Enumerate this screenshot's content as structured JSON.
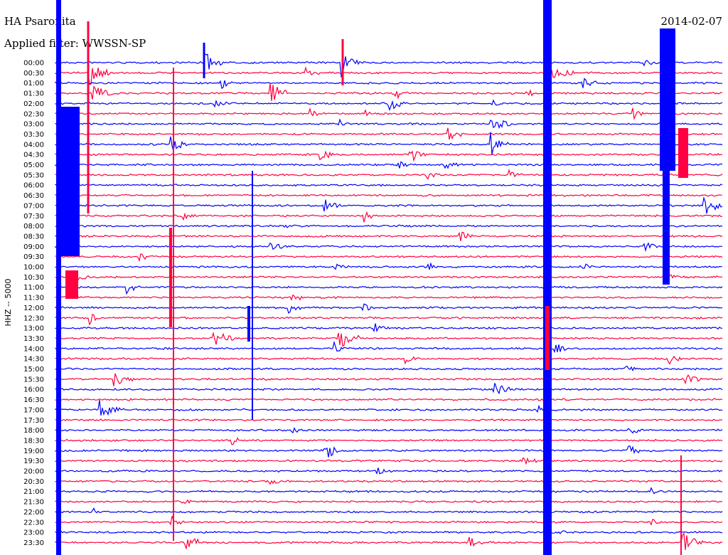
{
  "chart_data": {
    "type": "line",
    "title": "HA Psaronita",
    "subtitle": "Applied filter: WWSSN-SP",
    "date_label": "2014-02-07",
    "ylabel": "HHZ -- 5000",
    "row_labels": [
      "00:00",
      "00:30",
      "01:00",
      "01:30",
      "02:00",
      "02:30",
      "03:00",
      "03:30",
      "04:00",
      "04:30",
      "05:00",
      "05:30",
      "06:00",
      "06:30",
      "07:00",
      "07:30",
      "08:00",
      "08:30",
      "09:00",
      "09:30",
      "10:00",
      "10:30",
      "11:00",
      "11:30",
      "12:00",
      "12:30",
      "13:00",
      "13:30",
      "14:00",
      "14:30",
      "15:00",
      "15:30",
      "16:00",
      "16:30",
      "17:00",
      "17:30",
      "18:00",
      "18:30",
      "19:00",
      "19:30",
      "20:00",
      "20:30",
      "21:00",
      "21:30",
      "22:00",
      "22:30",
      "23:00",
      "23:30"
    ],
    "row_colors": [
      "#0000ff",
      "#ff0040"
    ],
    "grid": false,
    "legend": "none"
  }
}
